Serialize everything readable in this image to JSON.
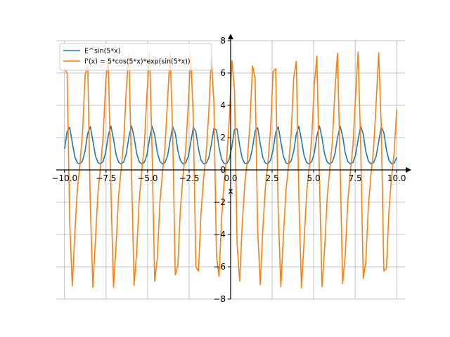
{
  "chart_data": {
    "type": "line",
    "title": "",
    "xlabel": "x",
    "ylabel": "",
    "xlim": [
      -10.5,
      10.5
    ],
    "ylim": [
      -8,
      8
    ],
    "x_ticks": [
      -10.0,
      -7.5,
      -5.0,
      -2.5,
      0.0,
      2.5,
      5.0,
      7.5,
      10.0
    ],
    "x_tick_labels": [
      "−10.0",
      "−7.5",
      "−5.0",
      "−2.5",
      "0.0",
      "2.5",
      "5.0",
      "7.5",
      "10.0"
    ],
    "y_ticks": [
      -8,
      -6,
      -4,
      -2,
      0,
      2,
      4,
      6,
      8
    ],
    "y_tick_labels": [
      "−8",
      "−6",
      "−4",
      "−2",
      "0",
      "2",
      "4",
      "6",
      "8"
    ],
    "grid": true,
    "legend_position": "top-left",
    "colors": {
      "series1": "#1f77b4",
      "series2": "#ff7f0e",
      "grid": "#b0b0b0",
      "axis": "#000000"
    },
    "series": [
      {
        "name": "E^sin(5*x)",
        "expression": "exp(sin(5*x))"
      },
      {
        "name": "f'(x) = 5*cos(5*x)*exp(sin(5*x))",
        "expression": "5*cos(5*x)*exp(sin(5*x))"
      }
    ],
    "x_sampling": {
      "from": -10,
      "to": 10,
      "points": 130
    }
  }
}
